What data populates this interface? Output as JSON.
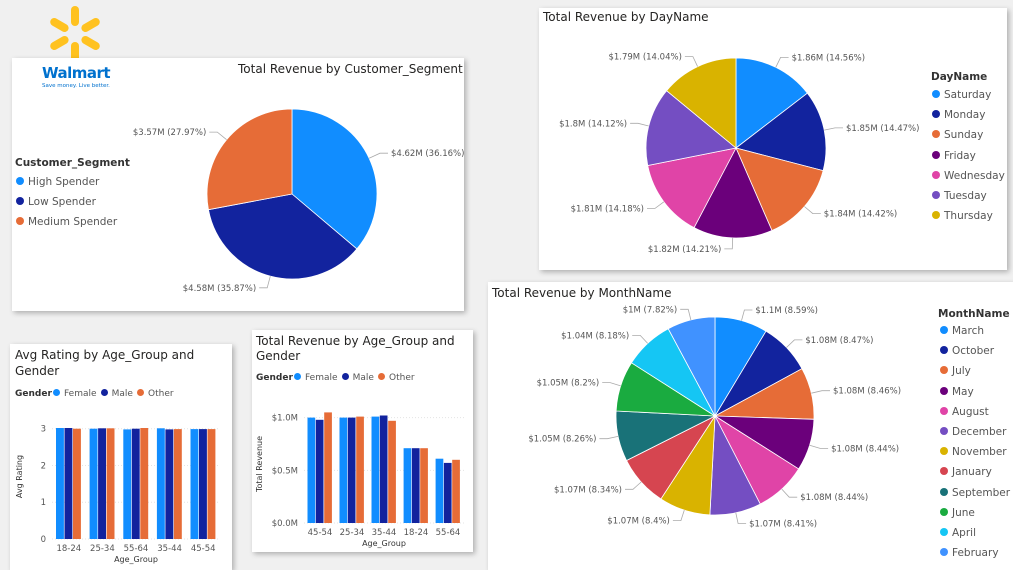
{
  "logo": {
    "brand": "Walmart",
    "tagline": "Save money. Live better."
  },
  "colors": {
    "blue": "#118DFF",
    "navy": "#12239E",
    "orange": "#E66C37",
    "purple": "#6B007B",
    "pink": "#E044A7",
    "violet": "#744EC2",
    "gold": "#D9B300",
    "teal": "#197278",
    "red": "#D64550",
    "green": "#1AAB40",
    "cyan": "#15C6F4",
    "lightblue": "#4092FF"
  },
  "chart_data": [
    {
      "id": "segment",
      "type": "pie",
      "title": "Total Revenue by Customer_Segment",
      "legend_title": "Customer_Segment",
      "legend_position": "left",
      "slices": [
        {
          "name": "High Spender",
          "value_label": "$4.62M (36.16%)",
          "value": 4.62,
          "percent": 36.16,
          "color": "#118DFF"
        },
        {
          "name": "Low Spender",
          "value_label": "$4.58M (35.87%)",
          "value": 4.58,
          "percent": 35.87,
          "color": "#12239E"
        },
        {
          "name": "Medium Spender",
          "value_label": "$3.57M (27.97%)",
          "value": 3.57,
          "percent": 27.97,
          "color": "#E66C37"
        }
      ]
    },
    {
      "id": "day",
      "type": "pie",
      "title": "Total Revenue by DayName",
      "legend_title": "DayName",
      "legend_position": "right",
      "slices": [
        {
          "name": "Saturday",
          "value_label": "$1.86M (14.56%)",
          "value": 1.86,
          "percent": 14.56,
          "color": "#118DFF"
        },
        {
          "name": "Monday",
          "value_label": "$1.85M (14.47%)",
          "value": 1.85,
          "percent": 14.47,
          "color": "#12239E"
        },
        {
          "name": "Sunday",
          "value_label": "$1.84M (14.42%)",
          "value": 1.84,
          "percent": 14.42,
          "color": "#E66C37"
        },
        {
          "name": "Friday",
          "value_label": "$1.82M (14.21%)",
          "value": 1.82,
          "percent": 14.21,
          "color": "#6B007B"
        },
        {
          "name": "Wednesday",
          "value_label": "$1.81M (14.18%)",
          "value": 1.81,
          "percent": 14.18,
          "color": "#E044A7"
        },
        {
          "name": "Tuesday",
          "value_label": "$1.8M (14.12%)",
          "value": 1.8,
          "percent": 14.12,
          "color": "#744EC2"
        },
        {
          "name": "Thursday",
          "value_label": "$1.79M (14.04%)",
          "value": 1.79,
          "percent": 14.04,
          "color": "#D9B300"
        }
      ]
    },
    {
      "id": "month",
      "type": "pie",
      "title": "Total Revenue by MonthName",
      "legend_title": "MonthName",
      "legend_position": "right",
      "slices": [
        {
          "name": "March",
          "value_label": "$1.1M (8.59%)",
          "value": 1.1,
          "percent": 8.59,
          "color": "#118DFF"
        },
        {
          "name": "October",
          "value_label": "$1.08M (8.47%)",
          "value": 1.08,
          "percent": 8.47,
          "color": "#12239E"
        },
        {
          "name": "July",
          "value_label": "$1.08M (8.46%)",
          "value": 1.08,
          "percent": 8.46,
          "color": "#E66C37"
        },
        {
          "name": "May",
          "value_label": "$1.08M (8.44%)",
          "value": 1.08,
          "percent": 8.44,
          "color": "#6B007B"
        },
        {
          "name": "August",
          "value_label": "$1.08M (8.44%)",
          "value": 1.08,
          "percent": 8.44,
          "color": "#E044A7"
        },
        {
          "name": "December",
          "value_label": "$1.07M (8.41%)",
          "value": 1.07,
          "percent": 8.41,
          "color": "#744EC2"
        },
        {
          "name": "November",
          "value_label": "$1.07M (8.4%)",
          "value": 1.07,
          "percent": 8.4,
          "color": "#D9B300"
        },
        {
          "name": "January",
          "value_label": "$1.07M (8.34%)",
          "value": 1.07,
          "percent": 8.34,
          "color": "#D64550"
        },
        {
          "name": "September",
          "value_label": "$1.05M (8.26%)",
          "value": 1.05,
          "percent": 8.26,
          "color": "#197278"
        },
        {
          "name": "June",
          "value_label": "$1.05M (8.2%)",
          "value": 1.05,
          "percent": 8.2,
          "color": "#1AAB40"
        },
        {
          "name": "April",
          "value_label": "$1.04M (8.18%)",
          "value": 1.04,
          "percent": 8.18,
          "color": "#15C6F4"
        },
        {
          "name": "February",
          "value_label": "$1M (7.82%)",
          "value": 1.0,
          "percent": 7.82,
          "color": "#4092FF"
        }
      ]
    },
    {
      "id": "rating",
      "type": "bar",
      "title": "Avg Rating by Age_Group and Gender",
      "title_lines": [
        "Avg Rating by Age_Group and",
        "Gender"
      ],
      "legend_title": "Gender",
      "legend_position": "top",
      "xlabel": "Age_Group",
      "ylabel": "Avg Rating",
      "ylim": [
        0,
        3.4
      ],
      "yticks": [
        {
          "v": 0,
          "t": "0"
        },
        {
          "v": 1,
          "t": "1"
        },
        {
          "v": 2,
          "t": "2"
        },
        {
          "v": 3,
          "t": "3"
        }
      ],
      "grid": true,
      "categories": [
        "18-24",
        "25-34",
        "55-64",
        "35-44",
        "45-54"
      ],
      "series": [
        {
          "name": "Female",
          "color": "#118DFF",
          "values": [
            3.02,
            3.0,
            2.98,
            3.01,
            2.99
          ]
        },
        {
          "name": "Male",
          "color": "#12239E",
          "values": [
            3.02,
            3.01,
            3.0,
            2.98,
            2.99
          ]
        },
        {
          "name": "Other",
          "color": "#E66C37",
          "values": [
            3.0,
            3.01,
            3.02,
            2.99,
            2.99
          ]
        }
      ]
    },
    {
      "id": "revage",
      "type": "bar",
      "title": "Total Revenue by Age_Group and Gender",
      "title_lines": [
        "Total Revenue by Age_Group and",
        "Gender"
      ],
      "legend_title": "Gender",
      "legend_position": "top",
      "xlabel": "Age_Group",
      "ylabel": "Total Revenue",
      "ylim": [
        0,
        1.12
      ],
      "yticks": [
        {
          "v": 0,
          "t": "$0.0M"
        },
        {
          "v": 0.5,
          "t": "$0.5M"
        },
        {
          "v": 1.0,
          "t": "$1.0M"
        }
      ],
      "grid": true,
      "categories": [
        "45-54",
        "25-34",
        "35-44",
        "18-24",
        "55-64"
      ],
      "series": [
        {
          "name": "Female",
          "color": "#118DFF",
          "values": [
            1.0,
            1.0,
            1.01,
            0.71,
            0.61
          ]
        },
        {
          "name": "Male",
          "color": "#12239E",
          "values": [
            0.98,
            1.0,
            1.02,
            0.71,
            0.57
          ]
        },
        {
          "name": "Other",
          "color": "#E66C37",
          "values": [
            1.05,
            1.01,
            0.97,
            0.71,
            0.6
          ]
        }
      ]
    }
  ]
}
